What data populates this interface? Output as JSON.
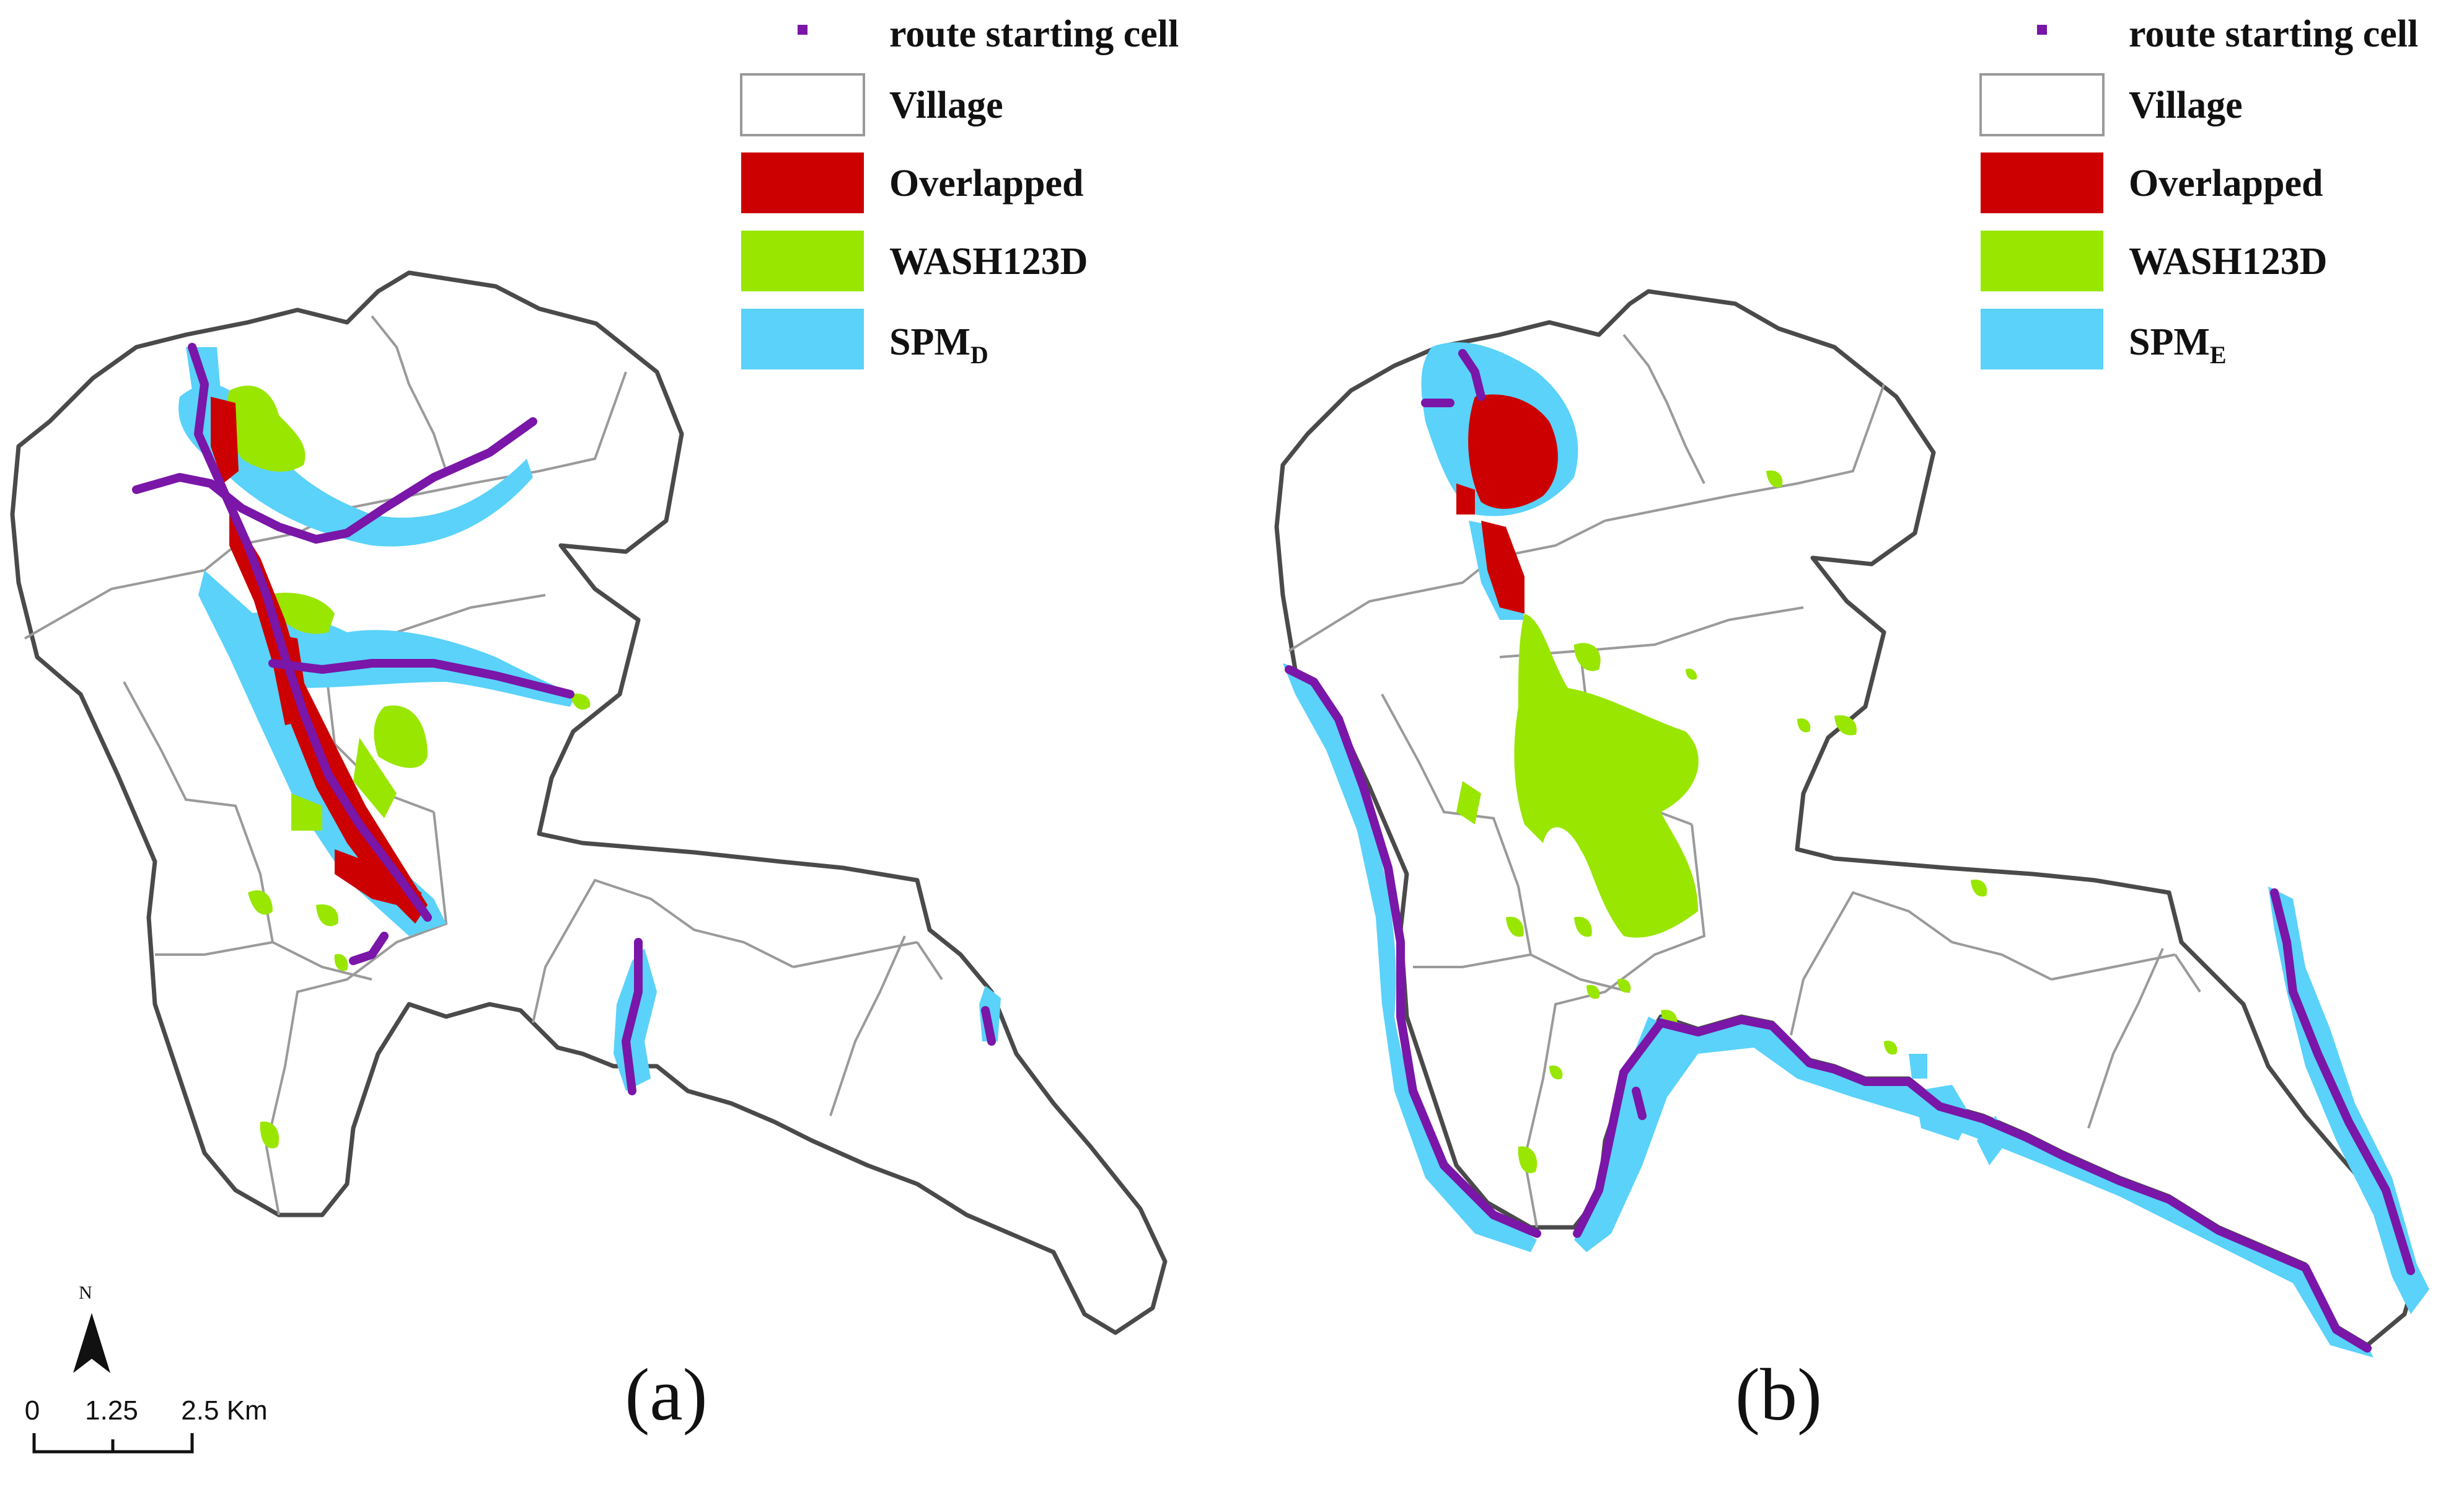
{
  "legend_left": {
    "route": "route starting cell",
    "village": "Village",
    "overlapped": "Overlapped",
    "wash": "WASH123D",
    "spm_base": "SPM",
    "spm_sub": "D"
  },
  "legend_right": {
    "route": "route starting cell",
    "village": "Village",
    "overlapped": "Overlapped",
    "wash": "WASH123D",
    "spm_base": "SPM",
    "spm_sub": "E"
  },
  "captions": {
    "left": "(a)",
    "right": "(b)"
  },
  "north": {
    "label": "N"
  },
  "scale_bar": {
    "ticks": [
      "0",
      "1.25",
      "2.5 Km"
    ]
  },
  "colors": {
    "route": "#7a16a8",
    "overlapped": "#cc0000",
    "wash": "#99e600",
    "spm": "#5ad2fa",
    "village_fill": "#ffffff",
    "village_border": "#9a9a9a",
    "outline": "#4a4a4a"
  }
}
